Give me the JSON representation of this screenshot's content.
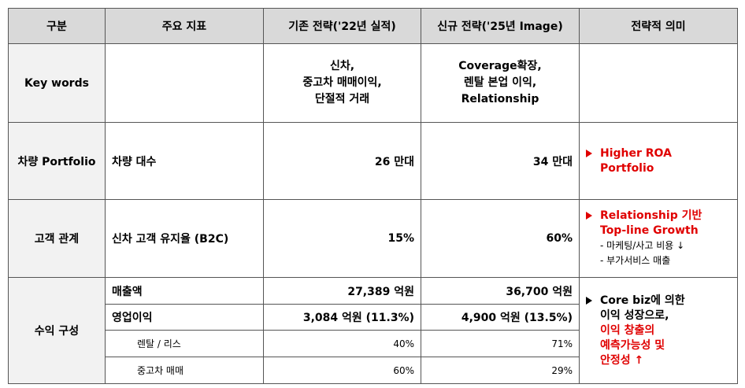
{
  "header": [
    "구분",
    "주요 지표",
    "기존 전략('22년 실적)",
    "신규 전략('25년 Image)",
    "전략적 의미"
  ],
  "rows": [
    {
      "category": "Key words",
      "existing": [
        "신차,",
        "중고차 매매이익,",
        "단절적 거래"
      ],
      "new": [
        "Coverage확장,",
        "렌탈 본업 이익,",
        "Relationship"
      ]
    },
    {
      "category": "차량 Portfolio",
      "indicator": "차량 대수",
      "existing": "26 만대",
      "new": "34 만대",
      "meaning": {
        "highlight": [
          "Higher ROA",
          "Portfolio"
        ]
      }
    },
    {
      "category": "고객 관계",
      "indicator": "신차 고객 유지율 (B2C)",
      "existing": "15%",
      "new": "60%",
      "meaning": {
        "highlight": [
          "Relationship 기반",
          "Top-line Growth"
        ],
        "notes": [
          "- 마케팅/사고 비용 ↓",
          "- 부가서비스 매출"
        ]
      }
    },
    {
      "category": "수익 구성",
      "subrows": [
        {
          "indicator": "매출액",
          "existing": "27,389 억원",
          "new": "36,700 억원"
        },
        {
          "indicator": "영업이익",
          "existing": "3,084 억원 (11.3%)",
          "new": "4,900 억원 (13.5%)"
        },
        {
          "indicator": "렌탈 / 리스",
          "existing": "40%",
          "new": "71%"
        },
        {
          "indicator": "중고차 매매",
          "existing": "60%",
          "new": "29%"
        }
      ],
      "meaning": {
        "plain": [
          "Core biz에 의한",
          "이익 성장으로,"
        ],
        "highlight": [
          "이익 창출의",
          "예측가능성 및",
          "안정성 ↑"
        ]
      }
    }
  ]
}
